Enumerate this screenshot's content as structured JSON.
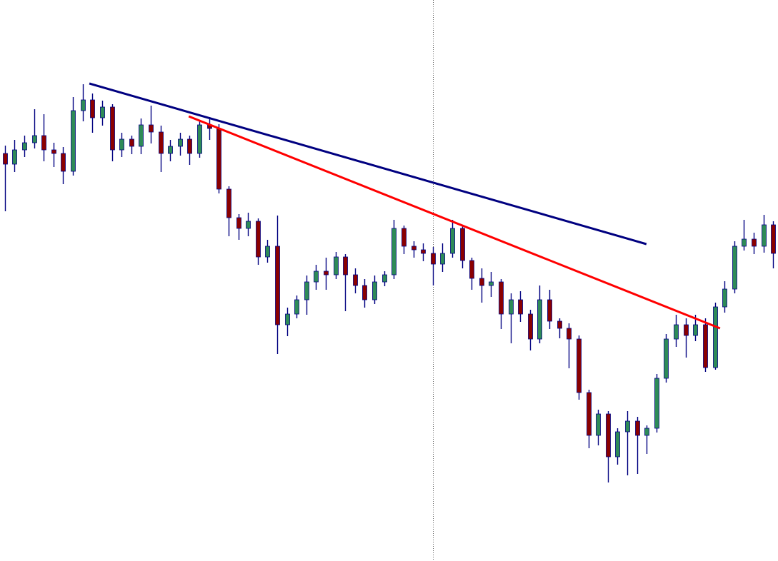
{
  "chart_data": {
    "type": "candlestick",
    "xlim": [
      -0.5,
      79.5
    ],
    "ylim": [
      0,
      786
    ],
    "up_color": "#2e8b57",
    "down_color": "#8b0000",
    "wick_color": "#000080",
    "open": [
      571,
      556,
      576,
      586,
      596,
      576,
      571,
      546,
      631,
      646,
      621,
      636,
      576,
      591,
      581,
      611,
      601,
      571,
      581,
      591,
      571,
      611,
      606,
      521,
      481,
      466,
      476,
      426,
      441,
      331,
      346,
      366,
      391,
      406,
      401,
      426,
      401,
      386,
      366,
      391,
      401,
      466,
      441,
      436,
      431,
      416,
      431,
      466,
      421,
      396,
      386,
      391,
      346,
      366,
      346,
      311,
      366,
      336,
      326,
      311,
      236,
      176,
      206,
      146,
      181,
      196,
      176,
      186,
      256,
      311,
      331,
      316,
      331,
      271,
      356,
      381,
      441,
      451,
      441,
      471
    ],
    "high": [
      582,
      590,
      596,
      633,
      626,
      586,
      580,
      650,
      668,
      655,
      645,
      640,
      600,
      596,
      620,
      638,
      610,
      590,
      600,
      596,
      616,
      622,
      612,
      525,
      486,
      488,
      480,
      450,
      484,
      355,
      372,
      400,
      415,
      425,
      433,
      430,
      410,
      395,
      400,
      406,
      478,
      470,
      448,
      445,
      440,
      445,
      478,
      470,
      425,
      410,
      405,
      395,
      375,
      378,
      352,
      386,
      380,
      340,
      333,
      316,
      240,
      212,
      210,
      186,
      210,
      202,
      190,
      262,
      318,
      345,
      340,
      345,
      340,
      362,
      392,
      448,
      478,
      460,
      485,
      476
    ],
    "low": [
      490,
      545,
      566,
      578,
      560,
      552,
      528,
      540,
      616,
      600,
      610,
      560,
      566,
      570,
      570,
      585,
      545,
      560,
      568,
      555,
      565,
      590,
      515,
      455,
      450,
      455,
      415,
      418,
      290,
      315,
      340,
      345,
      380,
      380,
      395,
      350,
      375,
      355,
      360,
      385,
      395,
      430,
      425,
      420,
      386,
      405,
      425,
      410,
      380,
      362,
      370,
      325,
      305,
      335,
      295,
      305,
      325,
      312,
      270,
      226,
      158,
      162,
      110,
      135,
      120,
      122,
      150,
      180,
      250,
      300,
      285,
      308,
      265,
      268,
      348,
      375,
      435,
      430,
      432,
      410
    ],
    "close": [
      556,
      576,
      586,
      596,
      576,
      571,
      546,
      631,
      646,
      621,
      636,
      576,
      591,
      581,
      611,
      601,
      571,
      581,
      591,
      571,
      611,
      606,
      521,
      481,
      466,
      476,
      426,
      441,
      331,
      346,
      366,
      391,
      406,
      401,
      426,
      401,
      386,
      366,
      391,
      401,
      466,
      441,
      436,
      431,
      416,
      431,
      466,
      421,
      396,
      386,
      391,
      346,
      366,
      346,
      311,
      366,
      336,
      326,
      311,
      236,
      176,
      206,
      146,
      181,
      196,
      176,
      186,
      256,
      311,
      331,
      316,
      331,
      271,
      356,
      381,
      441,
      451,
      441,
      471,
      431
    ],
    "trendlines": [
      {
        "color": "#000080",
        "x": [
          8.69,
          65.97
        ],
        "y": [
          669,
          444
        ]
      },
      {
        "color": "#ff0000",
        "x": [
          18.91,
          73.54
        ],
        "y": [
          623,
          326
        ]
      }
    ],
    "cursor_x": 44
  }
}
